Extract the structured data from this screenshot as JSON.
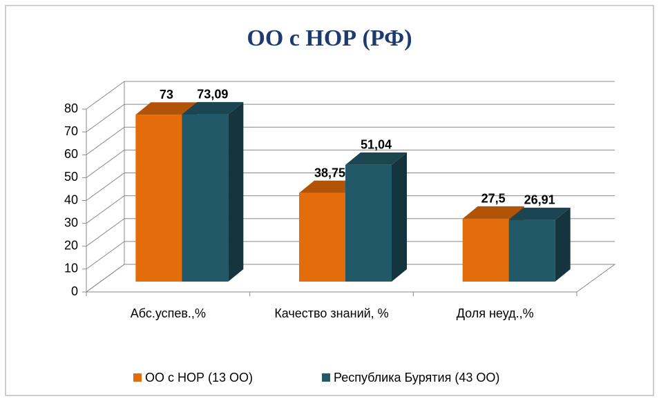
{
  "chart_data": {
    "type": "bar3d",
    "title": "ОО с НОР (РФ)",
    "categories": [
      "Абс.успев.,%",
      "Качество знаний, %",
      "Доля неуд.,%"
    ],
    "series": [
      {
        "name": "ОО с НОР (13 ОО)",
        "color": "#e46c0a",
        "values": [
          73,
          38.75,
          27.5
        ],
        "value_labels": [
          "73",
          "38,75",
          "27,5"
        ]
      },
      {
        "name": "Республика Бурятия (43 ОО)",
        "color": "#215968",
        "values": [
          73.09,
          51.04,
          26.91
        ],
        "value_labels": [
          "73,09",
          "51,04",
          "26,91"
        ]
      }
    ],
    "ylim": [
      0,
      80
    ],
    "yticks": [
      0,
      10,
      20,
      30,
      40,
      50,
      60,
      70,
      80
    ],
    "grid": true,
    "legend": "bottom"
  }
}
